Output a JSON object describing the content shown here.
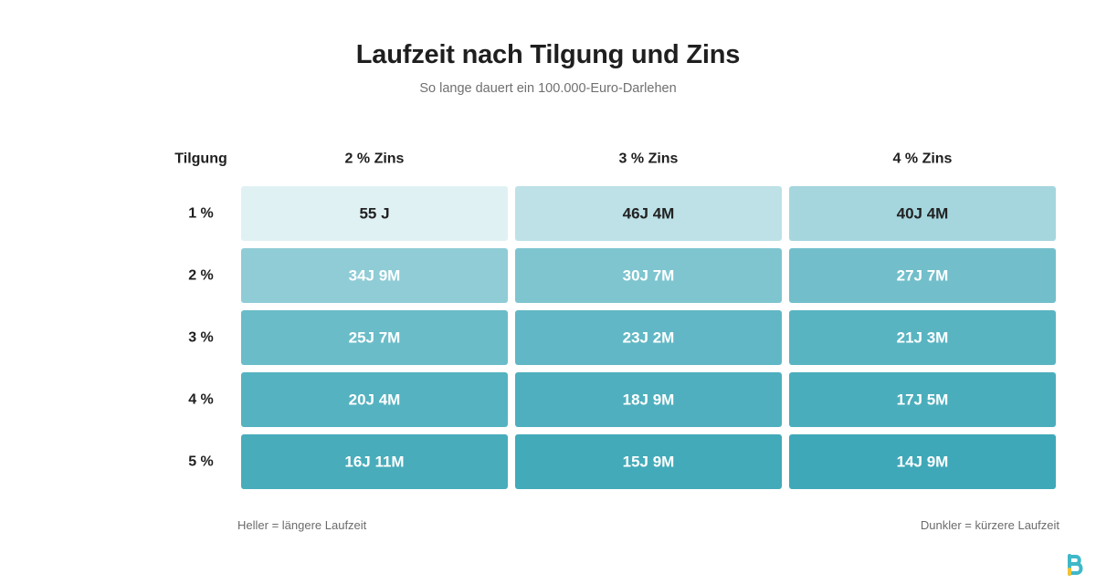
{
  "chart_data": {
    "type": "heatmap",
    "title": "Laufzeit nach Tilgung und Zins",
    "subtitle": "So lange dauert ein 100.000-Euro-Darlehen",
    "row_header": "Tilgung",
    "columns": [
      "2 % Zins",
      "3 % Zins",
      "4 % Zins"
    ],
    "rows": [
      "1 %",
      "2 %",
      "3 %",
      "4 %",
      "5 %"
    ],
    "labels": [
      [
        "55 J",
        "46J 4M",
        "40J 4M"
      ],
      [
        "34J 9M",
        "30J 7M",
        "27J 7M"
      ],
      [
        "25J 7M",
        "23J 2M",
        "21J 3M"
      ],
      [
        "20J 4M",
        "18J 9M",
        "17J 5M"
      ],
      [
        "16J 11M",
        "15J 9M",
        "14J 9M"
      ]
    ],
    "values_months": [
      [
        660,
        556,
        484
      ],
      [
        417,
        367,
        331
      ],
      [
        307,
        278,
        255
      ],
      [
        244,
        225,
        209
      ],
      [
        203,
        189,
        177
      ]
    ],
    "color_scale": {
      "light": "#e0f1f4",
      "dark": "#3fa8b8",
      "light_text": "#222222",
      "dark_text": "#ffffff"
    },
    "legend_light": "Heller = längere Laufzeit",
    "legend_dark": "Dunkler = kürzere Laufzeit",
    "grid": false
  },
  "logo": {
    "icon": "brand-b-icon",
    "colors": [
      "#3fb8c8",
      "#f1c232"
    ]
  }
}
